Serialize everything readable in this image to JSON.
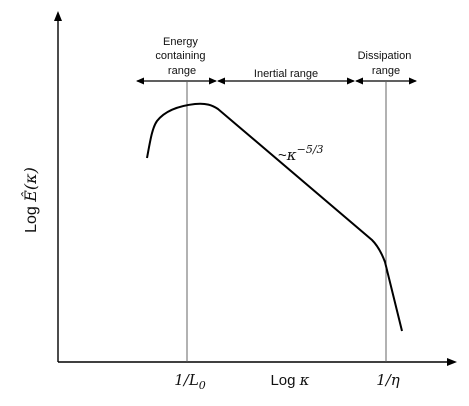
{
  "diagram": {
    "regions": {
      "energy": {
        "line1": "Energy",
        "line2": "containing",
        "line3": "range"
      },
      "inertial": {
        "label": "Inertial range"
      },
      "dissipation": {
        "line1": "Dissipation",
        "line2": "range"
      }
    },
    "slope_annotation": {
      "prefix": "~",
      "base": "κ",
      "exponent": "−5/3"
    },
    "x_axis": {
      "label_main": "Log ",
      "label_var": "κ",
      "ticks": {
        "inv_L0": {
          "prefix": "1/",
          "var": "L",
          "sub": "0"
        },
        "inv_eta": {
          "prefix": "1/",
          "var": "η"
        }
      }
    },
    "y_axis": {
      "label_main": "Log ",
      "label_var": "Ê(κ)"
    },
    "colors": {
      "axis": "#000000",
      "curve": "#000000",
      "guide": "#555555"
    }
  }
}
